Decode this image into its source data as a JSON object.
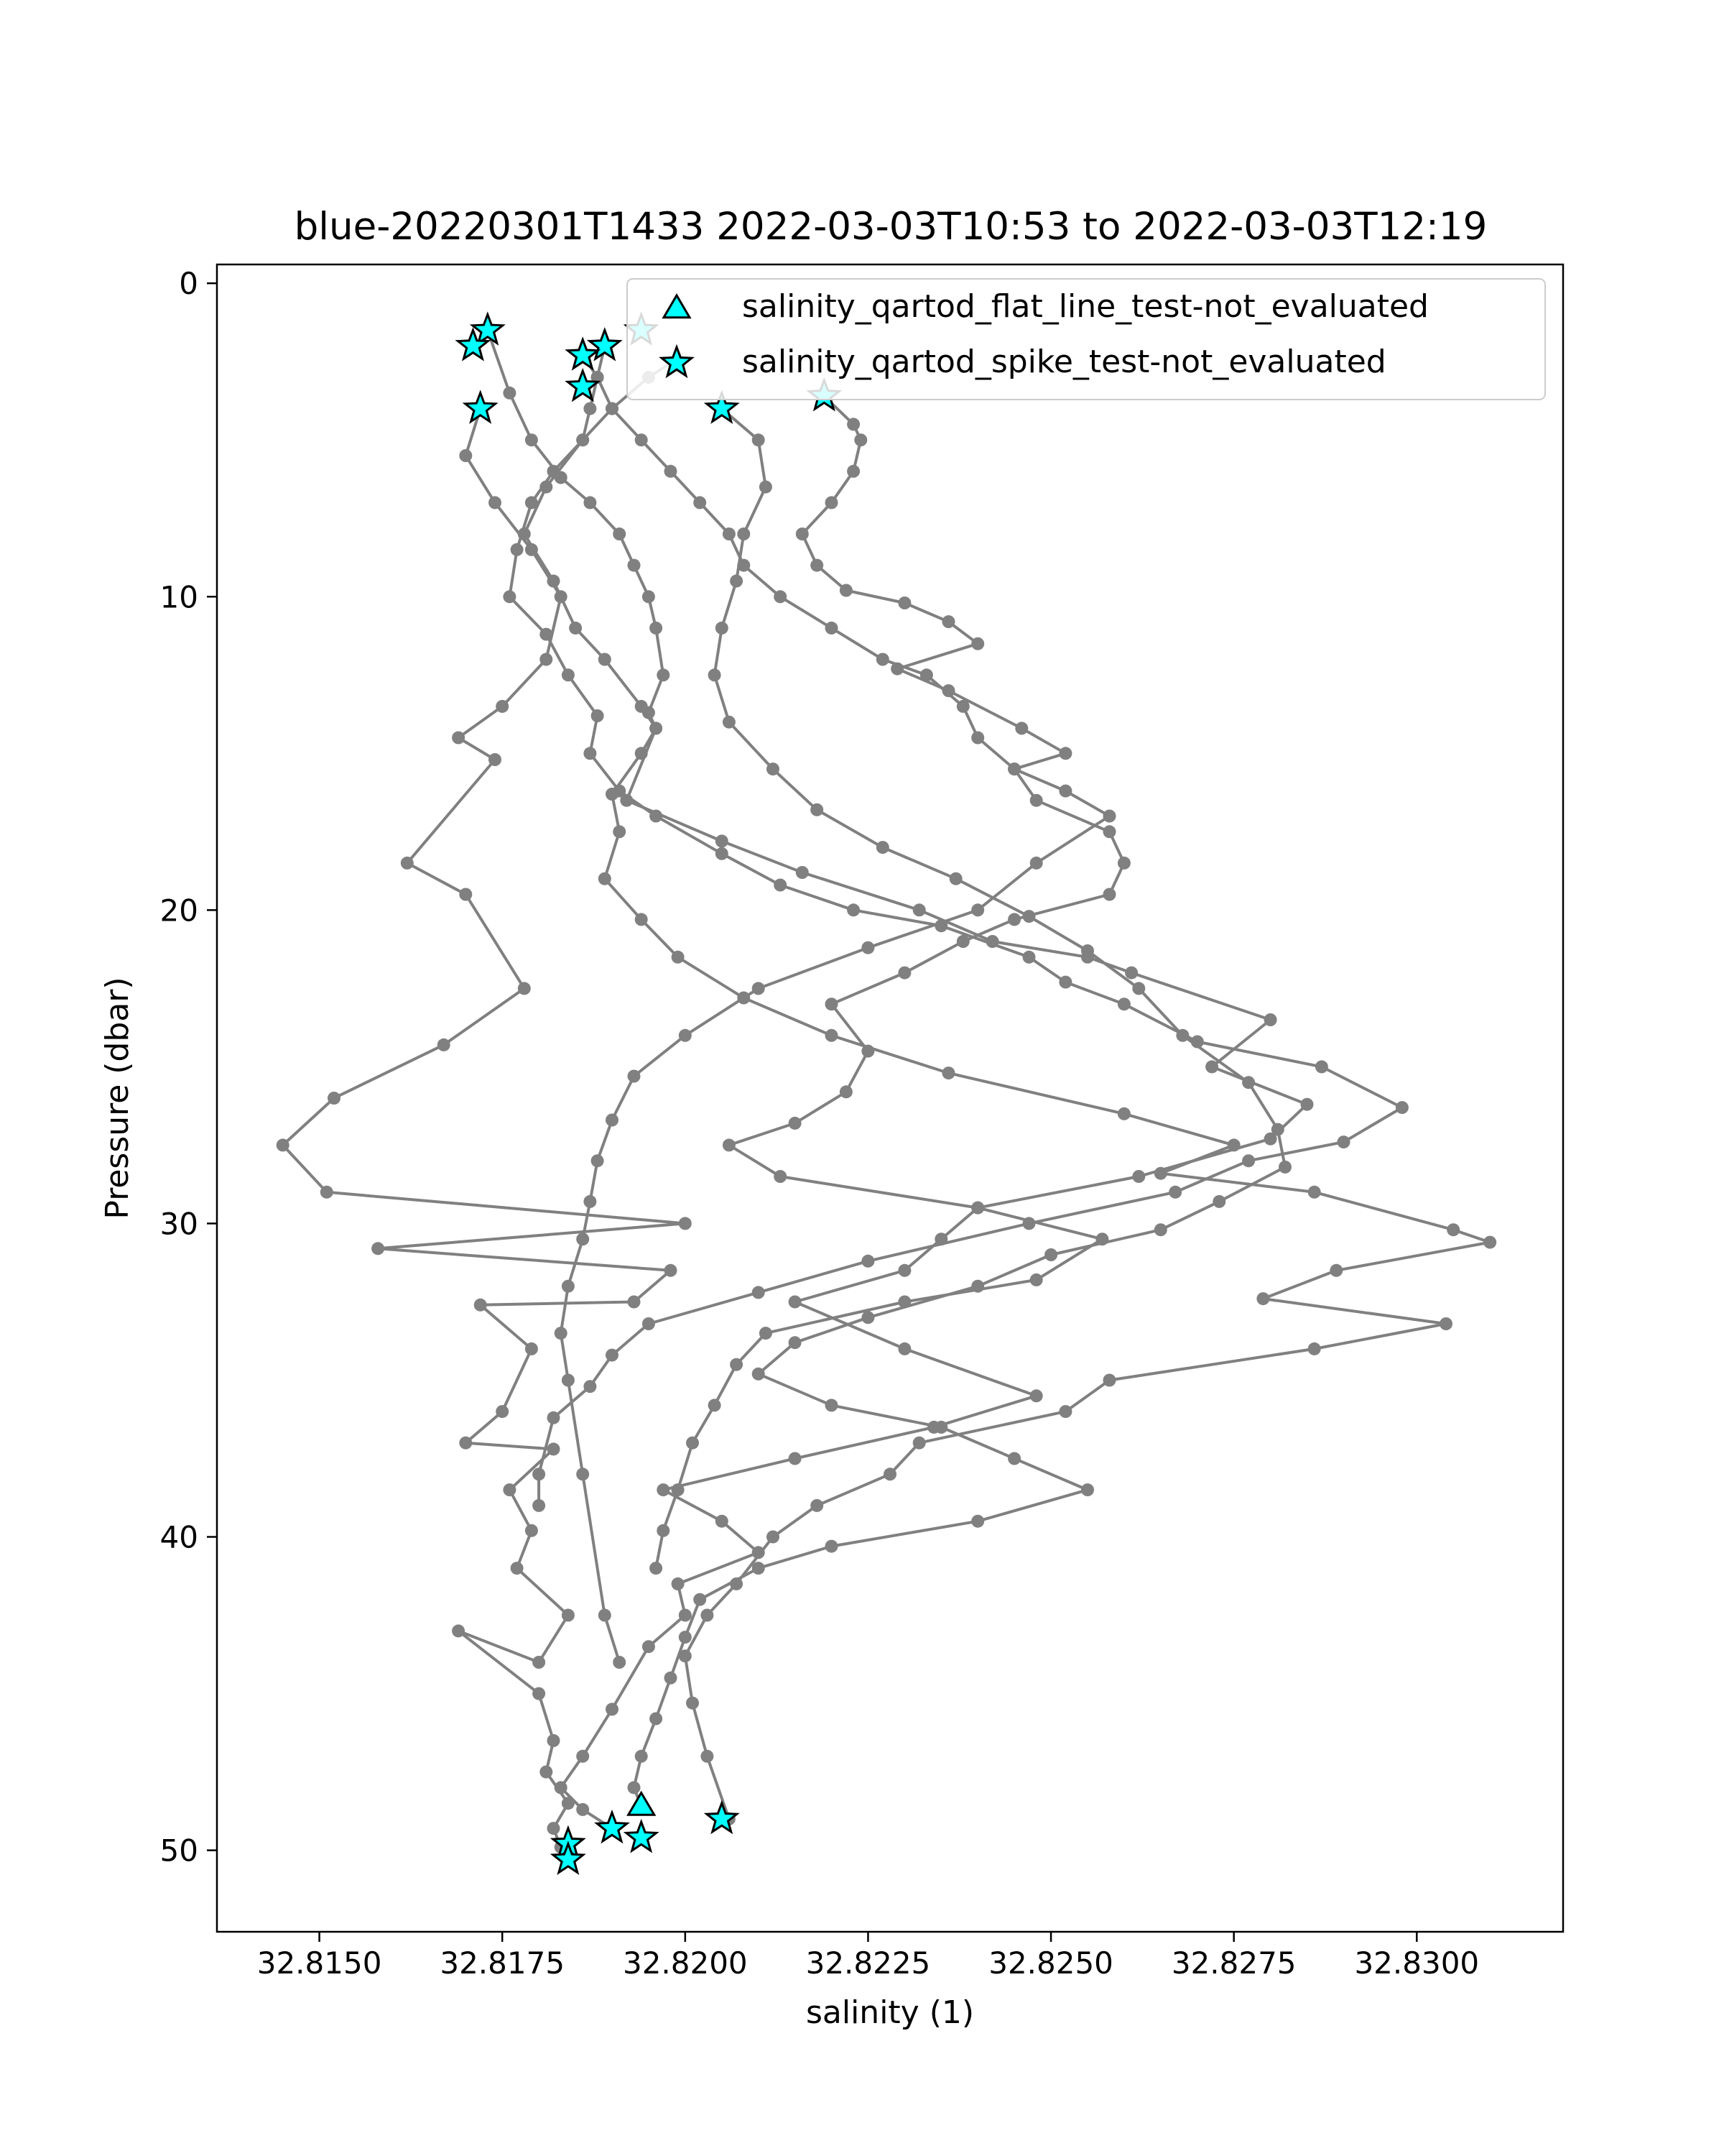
{
  "chart_data": {
    "type": "scatter",
    "title": "blue-20220301T1433 2022-03-03T10:53 to 2022-03-03T12:19",
    "xlabel": "salinity (1)",
    "ylabel": "Pressure (dbar)",
    "xlim": [
      32.8136,
      32.832
    ],
    "ylim": [
      52.6,
      -0.6
    ],
    "y_inverted": true,
    "x_ticks": [
      32.815,
      32.8175,
      32.82,
      32.8225,
      32.825,
      32.8275,
      32.83
    ],
    "x_tick_labels": [
      "32.8150",
      "32.8175",
      "32.8200",
      "32.8225",
      "32.8250",
      "32.8275",
      "32.8300"
    ],
    "y_ticks": [
      0,
      10,
      20,
      30,
      40,
      50
    ],
    "y_tick_labels": [
      "0",
      "10",
      "20",
      "30",
      "40",
      "50"
    ],
    "grid": false,
    "legend_position": "top-right",
    "colors": {
      "profile": "#808080",
      "flag_fill": "#00ffff",
      "flag_edge": "#000000"
    },
    "series": [
      {
        "type": "line",
        "color": "#808080",
        "markers": "circle",
        "x": [
          32.8173,
          32.8176,
          32.8179,
          32.8183,
          32.8187,
          32.8191,
          32.8193,
          32.8195,
          32.8196,
          32.8197,
          32.8195,
          32.8196,
          32.8194,
          32.819,
          32.8191,
          32.8189,
          32.8194,
          32.8199,
          32.8208,
          32.822,
          32.8236,
          32.826,
          32.8275,
          32.8265,
          32.8286,
          32.8305,
          32.831,
          32.8289,
          32.8279,
          32.8304,
          32.8286,
          32.8258,
          32.8252,
          32.8232,
          32.8228,
          32.8218,
          32.8212,
          32.8207,
          32.8203,
          32.82,
          32.8201,
          32.8203,
          32.8206
        ],
        "y": [
          1.5,
          3.5,
          5.0,
          6.2,
          7.0,
          8.0,
          9.0,
          10.0,
          11.0,
          12.5,
          13.7,
          14.2,
          15.0,
          16.3,
          17.5,
          19.0,
          20.3,
          21.5,
          22.8,
          24.0,
          25.2,
          26.5,
          27.5,
          28.4,
          29.0,
          30.2,
          30.6,
          31.5,
          32.4,
          33.2,
          34.0,
          35.0,
          36.0,
          37.0,
          38.0,
          39.0,
          40.0,
          41.5,
          42.5,
          43.8,
          45.3,
          47.0,
          49.0
        ]
      },
      {
        "type": "line",
        "color": "#808080",
        "markers": "circle",
        "x": [
          32.8172,
          32.817,
          32.8174,
          32.8179,
          32.8183,
          32.8181,
          32.8175,
          32.8169,
          32.8174,
          32.8162,
          32.817,
          32.8178,
          32.8167,
          32.8152,
          32.8145,
          32.8151,
          32.82,
          32.8158,
          32.8198,
          32.8193,
          32.8172,
          32.8179,
          32.8175,
          32.817,
          32.8182,
          32.8176,
          32.8179,
          32.8177,
          32.8184,
          32.818,
          32.8169,
          32.818,
          32.8182,
          32.8181,
          32.8184,
          32.8182,
          32.8183,
          32.8184
        ],
        "y": [
          4.0,
          5.5,
          7.0,
          8.5,
          10.0,
          12.0,
          13.5,
          14.5,
          15.2,
          18.5,
          19.5,
          22.5,
          24.3,
          26.0,
          27.5,
          29.0,
          30.0,
          30.8,
          31.5,
          32.5,
          32.6,
          34.0,
          36.0,
          37.0,
          37.2,
          38.5,
          39.8,
          41.0,
          42.5,
          44.0,
          43.0,
          45.0,
          46.5,
          47.5,
          48.5,
          49.3,
          49.9,
          50.3
        ]
      },
      {
        "type": "line",
        "color": "#808080",
        "markers": "circle",
        "x": [
          32.8189,
          32.8188,
          32.8187,
          32.8186,
          32.8181,
          32.8178,
          32.8182,
          32.8185,
          32.8189,
          32.8194,
          32.8196,
          32.8192,
          32.8205,
          32.8216,
          32.8232,
          32.8242,
          32.8255,
          32.8261,
          32.828,
          32.8272,
          32.8285,
          32.828,
          32.8262,
          32.824,
          32.8235,
          32.823,
          32.8215,
          32.823,
          32.8248,
          32.8234,
          32.8215,
          32.8197,
          32.8205,
          32.821,
          32.8199,
          32.82,
          32.8195,
          32.819,
          32.8186,
          32.8183,
          32.8186,
          32.819
        ],
        "y": [
          2.0,
          3.0,
          4.0,
          5.0,
          6.5,
          8.0,
          9.5,
          11.0,
          12.0,
          13.5,
          14.2,
          16.5,
          17.8,
          18.8,
          20.0,
          21.0,
          21.5,
          22.0,
          23.5,
          25.0,
          26.2,
          27.3,
          28.5,
          29.5,
          30.5,
          31.5,
          32.5,
          34.0,
          35.5,
          36.5,
          37.5,
          38.5,
          39.5,
          40.5,
          41.5,
          42.5,
          43.5,
          45.5,
          47.0,
          48.0,
          48.7,
          49.3
        ]
      },
      {
        "type": "line",
        "color": "#808080",
        "markers": "circle",
        "x": [
          32.8205,
          32.821,
          32.8211,
          32.8208,
          32.8207,
          32.8205,
          32.8204,
          32.8206,
          32.8212,
          32.8218,
          32.8227,
          32.8237,
          32.8247,
          32.8255,
          32.8262,
          32.8268,
          32.8277,
          32.8281,
          32.8282,
          32.8273,
          32.8265,
          32.825,
          32.824,
          32.8225,
          32.8215,
          32.821,
          32.822,
          32.8235,
          32.8245,
          32.8255,
          32.824,
          32.822,
          32.821,
          32.8202,
          32.82,
          32.8198,
          32.8196,
          32.8194,
          32.8193,
          32.8194
        ],
        "y": [
          4.0,
          5.0,
          6.5,
          8.0,
          9.5,
          11.0,
          12.5,
          14.0,
          15.5,
          16.8,
          18.0,
          19.0,
          20.2,
          21.3,
          22.5,
          24.0,
          25.5,
          27.0,
          28.2,
          29.3,
          30.2,
          31.0,
          32.0,
          33.0,
          33.8,
          34.8,
          35.8,
          36.5,
          37.5,
          38.5,
          39.5,
          40.3,
          41.0,
          42.0,
          43.2,
          44.5,
          45.8,
          47.0,
          48.0,
          48.6
        ]
      },
      {
        "type": "line",
        "color": "#808080",
        "markers": "circle",
        "x": [
          32.8219,
          32.8223,
          32.8224,
          32.8223,
          32.822,
          32.8216,
          32.8218,
          32.8222,
          32.823,
          32.8236,
          32.824,
          32.8229,
          32.8236,
          32.8246,
          32.8252,
          32.8245,
          32.8248,
          32.8258,
          32.826,
          32.8258,
          32.8245,
          32.8238,
          32.823,
          32.822,
          32.8225,
          32.8222,
          32.8215,
          32.8206,
          32.8213,
          32.824,
          32.8257,
          32.8248,
          32.823,
          32.8211,
          32.8207,
          32.8204,
          32.8201,
          32.8199,
          32.8197,
          32.8196
        ],
        "y": [
          3.6,
          4.5,
          5.0,
          6.0,
          7.0,
          8.0,
          9.0,
          9.8,
          10.2,
          10.8,
          11.5,
          12.3,
          13.0,
          14.2,
          15.0,
          15.5,
          16.5,
          17.5,
          18.5,
          19.5,
          20.3,
          21.0,
          22.0,
          23.0,
          24.5,
          25.8,
          26.8,
          27.5,
          28.5,
          29.5,
          30.5,
          31.8,
          32.5,
          33.5,
          34.5,
          35.8,
          37.0,
          38.5,
          39.8,
          41.0
        ]
      },
      {
        "type": "line",
        "color": "#808080",
        "markers": "circle",
        "x": [
          32.8199,
          32.8195,
          32.819,
          32.8186,
          32.8182,
          32.8179,
          32.8177,
          32.8176,
          32.8181,
          32.8184,
          32.8188,
          32.8187,
          32.8191,
          32.8196,
          32.8205,
          32.8213,
          32.8223,
          32.8235,
          32.8247,
          32.8252,
          32.826,
          32.827,
          32.8287,
          32.8298,
          32.829,
          32.8277,
          32.8267,
          32.8247,
          32.8225,
          32.821,
          32.8195,
          32.819,
          32.8187,
          32.8182,
          32.818,
          32.818
        ],
        "y": [
          2.4,
          3.0,
          4.0,
          5.0,
          6.0,
          7.0,
          8.5,
          10.0,
          11.2,
          12.5,
          13.8,
          15.0,
          16.2,
          17.0,
          18.2,
          19.2,
          20.0,
          20.5,
          21.5,
          22.3,
          23.0,
          24.2,
          25.0,
          26.3,
          27.4,
          28.0,
          29.0,
          30.0,
          31.2,
          32.2,
          33.2,
          34.2,
          35.2,
          36.2,
          38.0,
          39.0
        ]
      },
      {
        "type": "line",
        "color": "#808080",
        "markers": "circle",
        "x": [
          32.8186,
          32.8188,
          32.819,
          32.8194,
          32.8198,
          32.8202,
          32.8206,
          32.8208,
          32.8213,
          32.822,
          32.8227,
          32.8233,
          32.8238,
          32.824,
          32.8245,
          32.8252,
          32.8258,
          32.8248,
          32.824,
          32.8225,
          32.821,
          32.82,
          32.8193,
          32.819,
          32.8188,
          32.8187,
          32.8186,
          32.8184,
          32.8183,
          32.8184,
          32.8186,
          32.8189,
          32.8191
        ],
        "y": [
          2.3,
          3.0,
          4.0,
          5.0,
          6.0,
          7.0,
          8.0,
          9.0,
          10.0,
          11.0,
          12.0,
          12.5,
          13.5,
          14.5,
          15.5,
          16.2,
          17.0,
          18.5,
          20.0,
          21.2,
          22.5,
          24.0,
          25.3,
          26.7,
          28.0,
          29.3,
          30.5,
          32.0,
          33.5,
          35.0,
          38.0,
          42.5,
          44.0
        ]
      },
      {
        "type": "scatter",
        "name": "salinity_qartod_flat_line_test-not_evaluated",
        "marker": "triangle",
        "x": [
          32.8194
        ],
        "y": [
          48.6
        ]
      },
      {
        "type": "scatter",
        "name": "salinity_qartod_spike_test-not_evaluated",
        "marker": "star",
        "x": [
          32.8173,
          32.8171,
          32.8172,
          32.8189,
          32.8194,
          32.8186,
          32.8186,
          32.8205,
          32.8219,
          32.8184,
          32.8184,
          32.819,
          32.8194,
          32.8205
        ],
        "y": [
          1.5,
          2.0,
          4.0,
          2.0,
          1.5,
          2.3,
          3.3,
          4.0,
          3.6,
          49.8,
          50.3,
          49.3,
          49.6,
          49.0
        ]
      }
    ]
  }
}
